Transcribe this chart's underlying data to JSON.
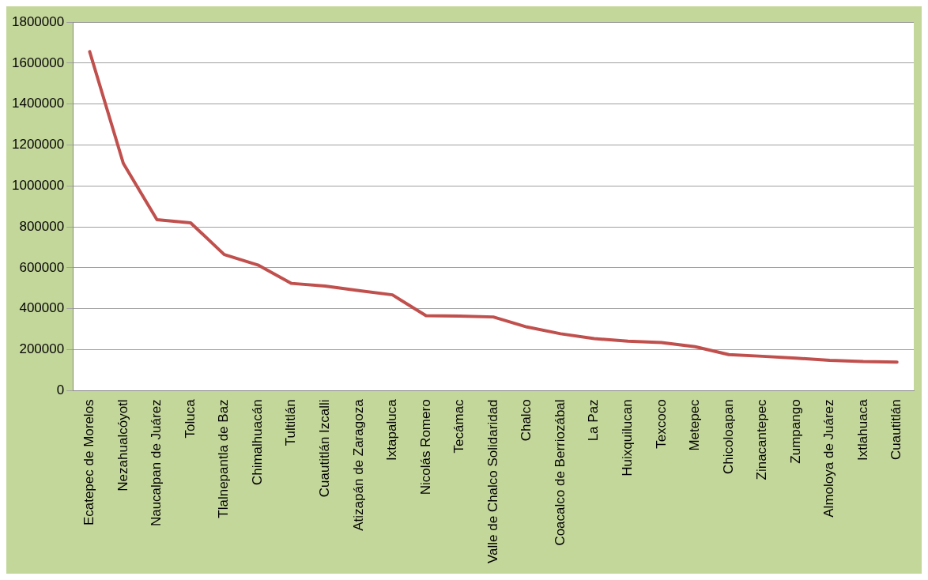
{
  "chart_data": {
    "type": "line",
    "categories": [
      "Ecatepec de Morelos",
      "Nezahualcóyotl",
      "Naucalpan de Juárez",
      "Toluca",
      "Tlalnepantla de Baz",
      "Chimalhuacán",
      "Tultitlán",
      "Cuautitlán Izcalli",
      "Atizapán de Zaragoza",
      "Ixtapaluca",
      "Nicolás Romero",
      "Tecámac",
      "Valle de Chalco Solidaridad",
      "Chalco",
      "Coacalco de Berriozábal",
      "La Paz",
      "Huixquilucan",
      "Texcoco",
      "Metepec",
      "Chicoloapan",
      "Zinacantepec",
      "Zumpango",
      "Almoloya de Juárez",
      "Ixtlahuaca",
      "Cuautitlán"
    ],
    "values": [
      1656000,
      1110000,
      835000,
      820000,
      665000,
      614000,
      524000,
      511000,
      489000,
      468000,
      366000,
      364000,
      360000,
      311000,
      278000,
      254000,
      242000,
      235000,
      215000,
      176000,
      168000,
      159000,
      148000,
      142000,
      140000
    ],
    "color": "#c0504d",
    "ylim": [
      0,
      1800000
    ],
    "yticks": [
      0,
      200000,
      400000,
      600000,
      800000,
      1000000,
      1200000,
      1400000,
      1600000,
      1800000
    ],
    "grid": "y",
    "legend": false,
    "marker": "none",
    "line_style": "solid"
  }
}
